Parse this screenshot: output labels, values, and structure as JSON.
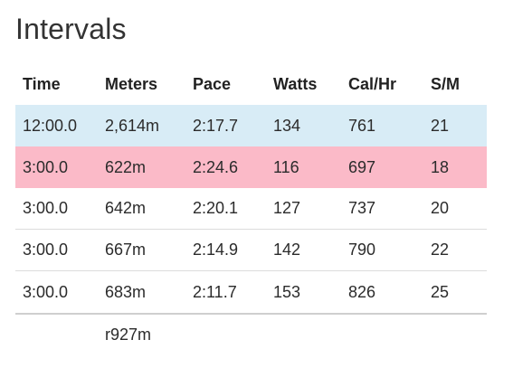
{
  "title": "Intervals",
  "columns": [
    "Time",
    "Meters",
    "Pace",
    "Watts",
    "Cal/Hr",
    "S/M"
  ],
  "rows": [
    {
      "time": "12:00.0",
      "meters": "2,614m",
      "pace": "2:17.7",
      "watts": "134",
      "calhr": "761",
      "sm": "21",
      "highlight": "blue"
    },
    {
      "time": "3:00.0",
      "meters": "622m",
      "pace": "2:24.6",
      "watts": "116",
      "calhr": "697",
      "sm": "18",
      "highlight": "pink"
    },
    {
      "time": "3:00.0",
      "meters": "642m",
      "pace": "2:20.1",
      "watts": "127",
      "calhr": "737",
      "sm": "20",
      "highlight": ""
    },
    {
      "time": "3:00.0",
      "meters": "667m",
      "pace": "2:14.9",
      "watts": "142",
      "calhr": "790",
      "sm": "22",
      "highlight": ""
    },
    {
      "time": "3:00.0",
      "meters": "683m",
      "pace": "2:11.7",
      "watts": "153",
      "calhr": "826",
      "sm": "25",
      "highlight": ""
    }
  ],
  "footer": {
    "time": "",
    "meters": "r927m"
  },
  "colors": {
    "highlight_blue": "#d8ecf6",
    "highlight_pink": "#fbbac8"
  }
}
